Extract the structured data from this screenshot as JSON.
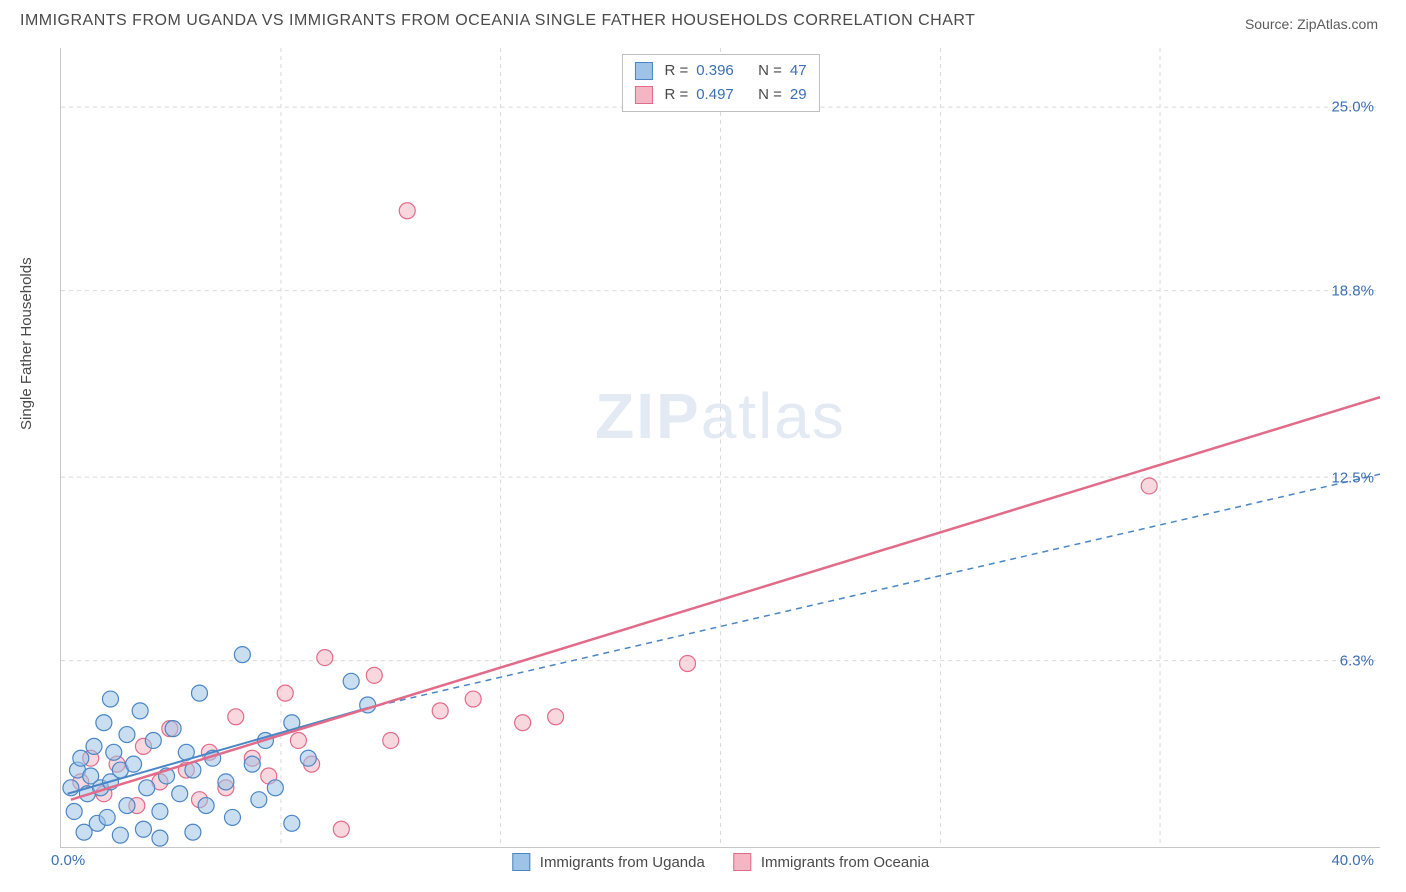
{
  "title": "IMMIGRANTS FROM UGANDA VS IMMIGRANTS FROM OCEANIA SINGLE FATHER HOUSEHOLDS CORRELATION CHART",
  "source": "Source: ZipAtlas.com",
  "ylabel": "Single Father Households",
  "watermark_a": "ZIP",
  "watermark_b": "atlas",
  "chart": {
    "type": "scatter",
    "xlim": [
      0,
      40
    ],
    "ylim": [
      0,
      27
    ],
    "x_tick_min": "0.0%",
    "x_tick_max": "40.0%",
    "y_ticks": [
      {
        "v": 6.3,
        "label": "6.3%"
      },
      {
        "v": 12.5,
        "label": "12.5%"
      },
      {
        "v": 18.8,
        "label": "18.8%"
      },
      {
        "v": 25.0,
        "label": "25.0%"
      }
    ],
    "x_grid": [
      6.67,
      13.33,
      20,
      26.67,
      33.33
    ],
    "background_color": "#ffffff",
    "grid_color": "#d9d9d9",
    "marker_radius": 8,
    "marker_opacity": 0.55,
    "series": [
      {
        "name": "Immigrants from Uganda",
        "color_fill": "#9dc3e6",
        "color_stroke": "#4a86c5",
        "r_label": "R =",
        "r": "0.396",
        "n_label": "N =",
        "n": "47",
        "points": [
          [
            0.3,
            2.0
          ],
          [
            0.4,
            1.2
          ],
          [
            0.5,
            2.6
          ],
          [
            0.6,
            3.0
          ],
          [
            0.7,
            0.5
          ],
          [
            0.8,
            1.8
          ],
          [
            0.9,
            2.4
          ],
          [
            1.0,
            3.4
          ],
          [
            1.1,
            0.8
          ],
          [
            1.2,
            2.0
          ],
          [
            1.3,
            4.2
          ],
          [
            1.4,
            1.0
          ],
          [
            1.5,
            2.2
          ],
          [
            1.5,
            5.0
          ],
          [
            1.6,
            3.2
          ],
          [
            1.8,
            0.4
          ],
          [
            1.8,
            2.6
          ],
          [
            2.0,
            3.8
          ],
          [
            2.0,
            1.4
          ],
          [
            2.2,
            2.8
          ],
          [
            2.4,
            4.6
          ],
          [
            2.5,
            0.6
          ],
          [
            2.6,
            2.0
          ],
          [
            2.8,
            3.6
          ],
          [
            3.0,
            1.2
          ],
          [
            3.0,
            0.3
          ],
          [
            3.2,
            2.4
          ],
          [
            3.4,
            4.0
          ],
          [
            3.6,
            1.8
          ],
          [
            3.8,
            3.2
          ],
          [
            4.0,
            0.5
          ],
          [
            4.0,
            2.6
          ],
          [
            4.2,
            5.2
          ],
          [
            4.4,
            1.4
          ],
          [
            4.6,
            3.0
          ],
          [
            5.0,
            2.2
          ],
          [
            5.2,
            1.0
          ],
          [
            5.5,
            6.5
          ],
          [
            5.8,
            2.8
          ],
          [
            6.0,
            1.6
          ],
          [
            6.2,
            3.6
          ],
          [
            6.5,
            2.0
          ],
          [
            7.0,
            4.2
          ],
          [
            7.0,
            0.8
          ],
          [
            7.5,
            3.0
          ],
          [
            8.8,
            5.6
          ],
          [
            9.3,
            4.8
          ]
        ],
        "trend_solid": {
          "x1": 0.2,
          "y1": 1.8,
          "x2": 9.3,
          "y2": 4.7,
          "width": 2
        },
        "trend_dash": {
          "x1": 9.3,
          "y1": 4.7,
          "x2": 40,
          "y2": 12.6,
          "width": 1.5,
          "dash": "6,5"
        }
      },
      {
        "name": "Immigrants from Oceania",
        "color_fill": "#f4b6c2",
        "color_stroke": "#e26b8a",
        "r_label": "R =",
        "r": "0.497",
        "n_label": "N =",
        "n": "29",
        "points": [
          [
            0.6,
            2.2
          ],
          [
            0.9,
            3.0
          ],
          [
            1.3,
            1.8
          ],
          [
            1.7,
            2.8
          ],
          [
            2.3,
            1.4
          ],
          [
            2.5,
            3.4
          ],
          [
            3.0,
            2.2
          ],
          [
            3.3,
            4.0
          ],
          [
            3.8,
            2.6
          ],
          [
            4.2,
            1.6
          ],
          [
            4.5,
            3.2
          ],
          [
            5.0,
            2.0
          ],
          [
            5.3,
            4.4
          ],
          [
            5.8,
            3.0
          ],
          [
            6.3,
            2.4
          ],
          [
            6.8,
            5.2
          ],
          [
            7.2,
            3.6
          ],
          [
            7.6,
            2.8
          ],
          [
            8.0,
            6.4
          ],
          [
            8.5,
            0.6
          ],
          [
            9.5,
            5.8
          ],
          [
            10.0,
            3.6
          ],
          [
            10.5,
            21.5
          ],
          [
            11.5,
            4.6
          ],
          [
            12.5,
            5.0
          ],
          [
            14.0,
            4.2
          ],
          [
            15.0,
            4.4
          ],
          [
            19.0,
            6.2
          ],
          [
            33.0,
            12.2
          ]
        ],
        "trend_solid": {
          "x1": 0.3,
          "y1": 1.6,
          "x2": 40,
          "y2": 15.2,
          "width": 2.5
        }
      }
    ]
  },
  "legend": {
    "series1": "Immigrants from Uganda",
    "series2": "Immigrants from Oceania"
  }
}
